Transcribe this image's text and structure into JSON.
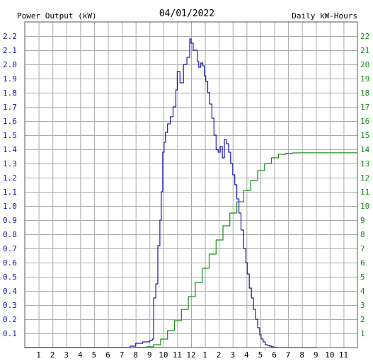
{
  "chart_data": {
    "type": "line",
    "title": "04/01/2022",
    "left_axis": {
      "label": "Power Output (kW)",
      "color": "#1818a8",
      "range": [
        0,
        2.3
      ],
      "ticks": [
        "0.1",
        "0.2",
        "0.3",
        "0.4",
        "0.5",
        "0.6",
        "0.7",
        "0.8",
        "0.9",
        "1.0",
        "1.1",
        "1.2",
        "1.3",
        "1.4",
        "1.5",
        "1.6",
        "1.7",
        "1.8",
        "1.9",
        "2.0",
        "2.1",
        "2.2"
      ]
    },
    "right_axis": {
      "label": "Daily kW-Hours",
      "color": "#1a8a1a",
      "range": [
        0,
        23
      ],
      "ticks": [
        "1",
        "2",
        "3",
        "4",
        "5",
        "6",
        "7",
        "8",
        "9",
        "10",
        "11",
        "12",
        "13",
        "14",
        "15",
        "16",
        "17",
        "18",
        "19",
        "20",
        "21",
        "22"
      ]
    },
    "x_axis": {
      "range": [
        0,
        24
      ],
      "ticks": [
        "1",
        "2",
        "3",
        "4",
        "5",
        "6",
        "7",
        "8",
        "9",
        "10",
        "11",
        "12",
        "1",
        "2",
        "3",
        "4",
        "5",
        "6",
        "7",
        "8",
        "9",
        "10",
        "11"
      ]
    },
    "grid": true,
    "series": [
      {
        "name": "Power Output (kW)",
        "axis": "left",
        "color": "#1818a8",
        "x": [
          0,
          7.2,
          7.6,
          8.0,
          8.5,
          9.0,
          9.2,
          9.3,
          9.45,
          9.6,
          9.75,
          9.85,
          9.95,
          10.05,
          10.15,
          10.3,
          10.5,
          10.7,
          10.9,
          11.0,
          11.2,
          11.45,
          11.7,
          11.9,
          12.0,
          12.15,
          12.3,
          12.45,
          12.55,
          12.7,
          12.85,
          12.95,
          13.05,
          13.2,
          13.35,
          13.5,
          13.65,
          13.8,
          13.95,
          14.1,
          14.25,
          14.4,
          14.55,
          14.7,
          14.85,
          15.0,
          15.15,
          15.3,
          15.45,
          15.6,
          15.8,
          15.95,
          16.05,
          16.2,
          16.35,
          16.5,
          16.65,
          16.8,
          16.95,
          17.05,
          17.2,
          17.35,
          17.5,
          17.65,
          17.8,
          17.95,
          18.05,
          18.2,
          18.35,
          18.5,
          18.65,
          18.8,
          18.95,
          19.05,
          19.2,
          19.35,
          19.5,
          19.65,
          19.8,
          19.95,
          20.05,
          20.2,
          20.35,
          20.5,
          20.65,
          20.8,
          21.0
        ],
        "y": [
          0,
          0,
          0.01,
          0.03,
          0.04,
          0.05,
          0.06,
          0.35,
          0.45,
          0.72,
          0.9,
          1.1,
          1.38,
          1.45,
          1.52,
          1.58,
          1.63,
          1.7,
          1.82,
          1.95,
          1.87,
          2.0,
          2.05,
          2.18,
          2.15,
          2.1,
          2.1,
          2.02,
          1.98,
          2.01,
          1.99,
          1.92,
          1.88,
          1.8,
          1.72,
          1.62,
          1.5,
          1.4,
          1.38,
          1.42,
          1.34,
          1.47,
          1.44,
          1.38,
          1.3,
          1.22,
          1.15,
          1.05,
          0.95,
          0.83,
          0.7,
          0.6,
          0.52,
          0.42,
          0.35,
          0.27,
          0.2,
          0.14,
          0.09,
          0.06,
          0.04,
          0.02,
          0.015,
          0.01,
          0.005,
          0.003,
          0.002,
          0.001,
          0,
          0,
          0,
          0,
          0,
          0,
          0,
          0,
          0,
          0,
          0,
          0,
          0,
          0,
          0,
          0,
          0,
          0,
          0
        ]
      },
      {
        "name": "Daily kW-Hours",
        "axis": "right",
        "color": "#1a8a1a",
        "x": [
          0,
          7.2,
          8.0,
          8.8,
          9.3,
          9.8,
          10.3,
          10.8,
          11.3,
          11.8,
          12.3,
          12.8,
          13.3,
          13.8,
          14.3,
          14.8,
          15.3,
          15.8,
          16.3,
          16.8,
          17.3,
          17.8,
          18.3,
          18.8,
          19.3,
          19.8,
          20.3,
          20.8,
          21.3,
          22.0,
          24.0
        ],
        "y": [
          0,
          0,
          0.02,
          0.06,
          0.2,
          0.6,
          1.2,
          1.9,
          2.7,
          3.6,
          4.6,
          5.6,
          6.6,
          7.6,
          8.6,
          9.5,
          10.3,
          11.1,
          11.8,
          12.5,
          13.0,
          13.4,
          13.65,
          13.72,
          13.75,
          13.76,
          13.76,
          13.76,
          13.76,
          13.76,
          13.76
        ]
      }
    ]
  }
}
